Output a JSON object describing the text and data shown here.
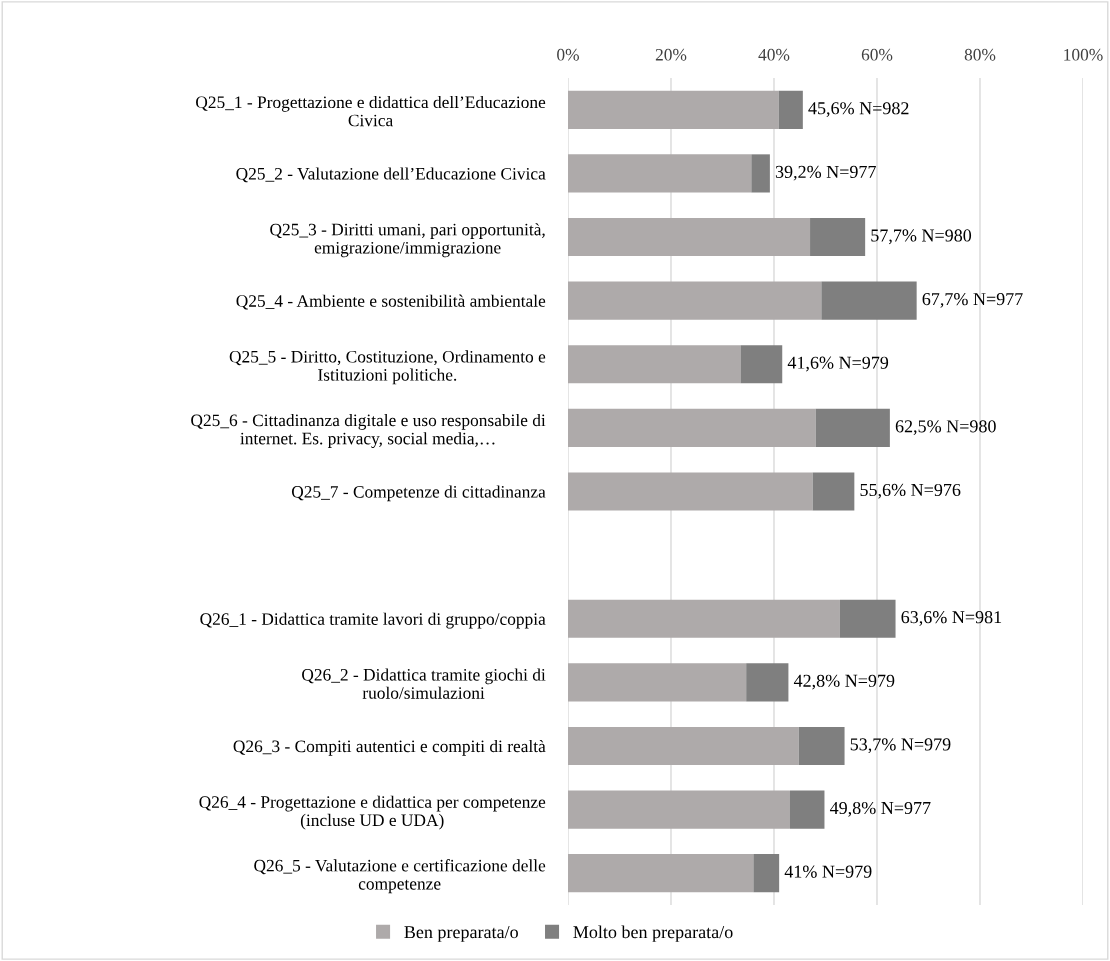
{
  "chart_data": {
    "type": "bar",
    "orientation": "horizontal",
    "stacked": true,
    "categories": [
      "Q25_1 - Progettazione e didattica dell’Educazione\nCivica",
      "Q25_2 - Valutazione dell’Educazione Civica",
      "Q25_3 - Diritti umani, pari opportunità,\nemigrazione/immigrazione",
      "Q25_4 - Ambiente e sostenibilità ambientale",
      "Q25_5 - Diritto, Costituzione, Ordinamento e\nIstituzioni politiche.",
      "Q25_6 - Cittadinanza digitale e uso responsabile di\ninternet. Es. privacy, social media,…",
      "Q25_7 - Competenze di cittadinanza",
      null,
      "Q26_1 - Didattica tramite lavori di gruppo/coppia",
      "Q26_2 - Didattica tramite giochi di\nruolo/simulazioni",
      "Q26_3 - Compiti autentici e compiti di realtà",
      "Q26_4 - Progettazione e didattica per competenze\n(incluse UD e UDA)",
      "Q26_5 - Valutazione e certificazione delle\ncompetenze"
    ],
    "series": [
      {
        "name": "Ben preparata/o",
        "color": "#aeaaaa",
        "values": [
          40.9,
          35.6,
          47.0,
          49.2,
          33.5,
          48.1,
          47.5,
          null,
          52.8,
          34.6,
          44.8,
          43.1,
          36.0
        ]
      },
      {
        "name": "Molto ben preparata/o",
        "color": "#7f7f7f",
        "values": [
          4.7,
          3.6,
          10.7,
          18.5,
          8.1,
          14.4,
          8.1,
          null,
          10.8,
          8.2,
          8.9,
          6.7,
          5.0
        ]
      }
    ],
    "totals": [
      "45,6% N=982",
      "39,2% N=977",
      "57,7% N=980",
      "67,7% N=977",
      "41,6% N=979",
      "62,5% N=980",
      "55,6% N=976",
      null,
      "63,6% N=981",
      "42,8% N=979",
      "53,7% N=979",
      "49,8% N=977",
      "41% N=979"
    ],
    "xlim": [
      0,
      100
    ],
    "xticks": [
      {
        "value": 0,
        "label": "0%"
      },
      {
        "value": 20,
        "label": "20%"
      },
      {
        "value": 40,
        "label": "40%"
      },
      {
        "value": 60,
        "label": "60%"
      },
      {
        "value": 80,
        "label": "80%"
      },
      {
        "value": 100,
        "label": "100%"
      }
    ],
    "grid": "x",
    "legend": "bottom"
  }
}
